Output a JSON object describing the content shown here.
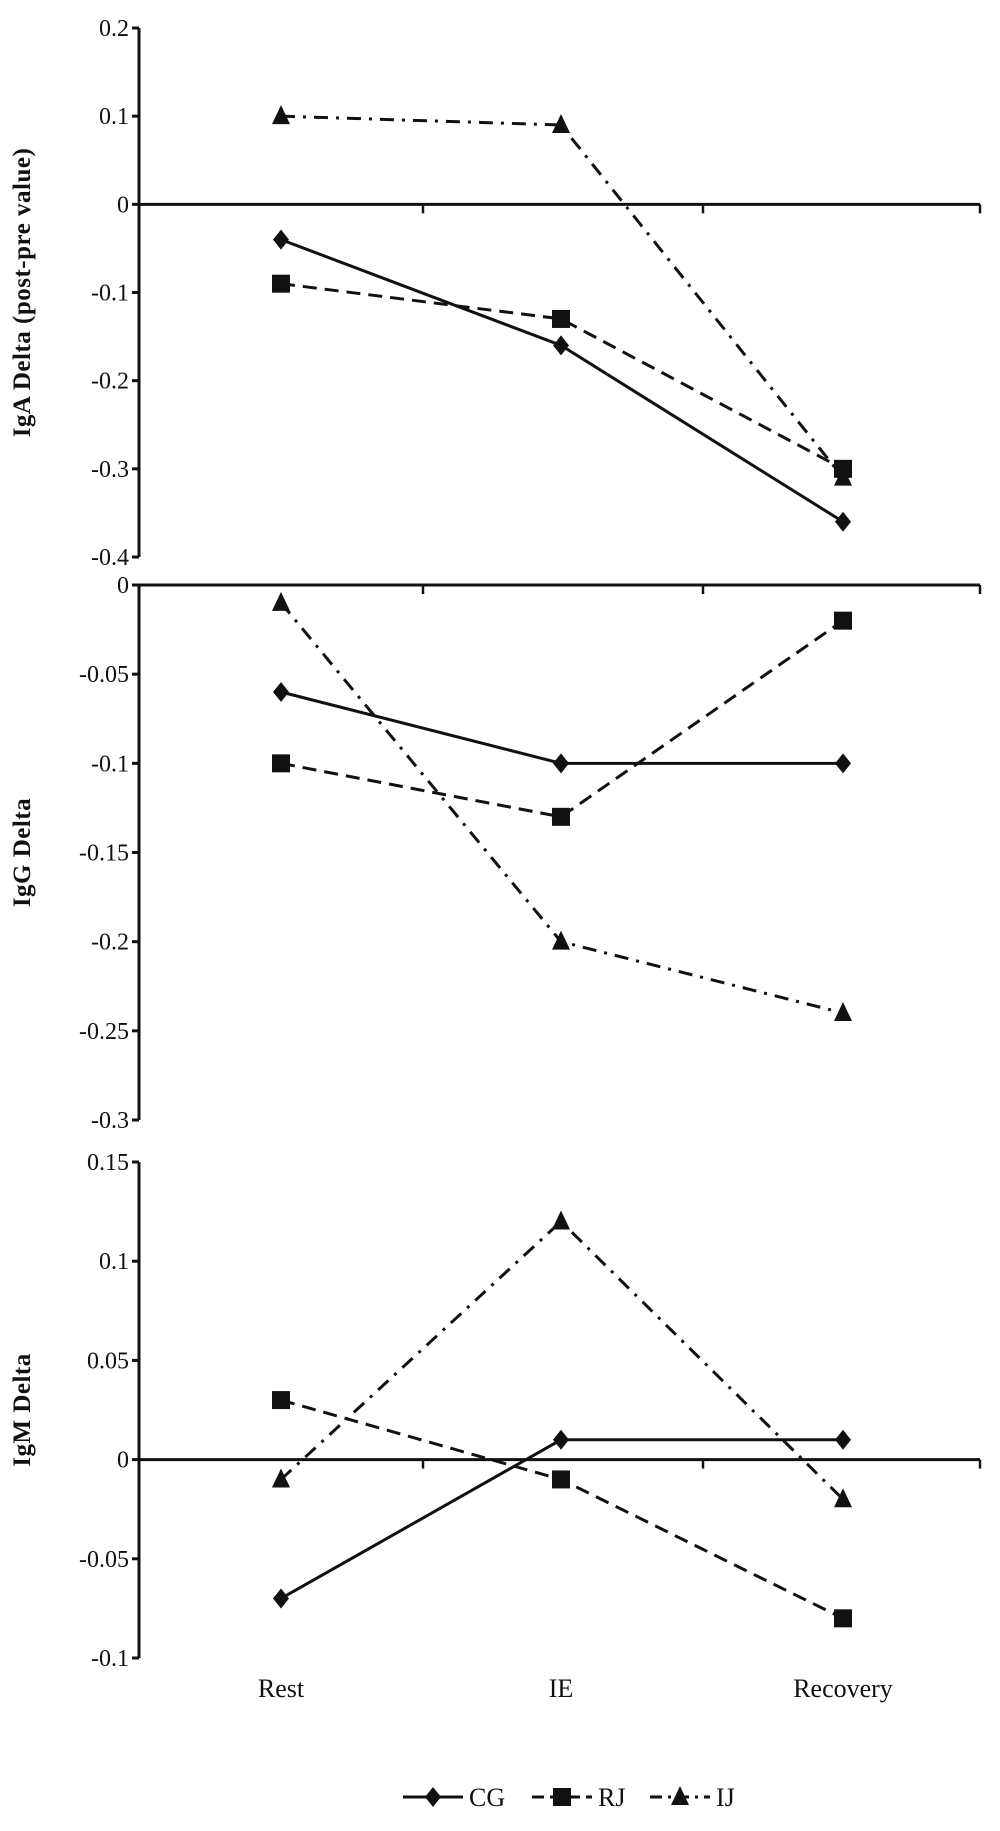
{
  "chart_data": [
    {
      "type": "line",
      "ylabel": "IgA Delta (post-pre value)",
      "categories": [
        "Rest",
        "IE",
        "Recovery"
      ],
      "ylim": [
        -0.4,
        0.2
      ],
      "yticks": [
        0.2,
        0.1,
        0,
        -0.1,
        -0.2,
        -0.3,
        -0.4
      ],
      "ytick_labels": [
        "0.2",
        "0.1",
        "0",
        "-0.1",
        "-0.2",
        "-0.3",
        "-0.4"
      ],
      "series": [
        {
          "name": "CG",
          "values": [
            -0.04,
            -0.16,
            -0.36
          ]
        },
        {
          "name": "RJ",
          "values": [
            -0.09,
            -0.13,
            -0.3
          ]
        },
        {
          "name": "IJ",
          "values": [
            0.1,
            0.09,
            -0.31
          ]
        }
      ]
    },
    {
      "type": "line",
      "ylabel": "IgG Delta",
      "categories": [
        "Rest",
        "IE",
        "Recovery"
      ],
      "ylim": [
        -0.3,
        0
      ],
      "yticks": [
        0,
        -0.05,
        -0.1,
        -0.15,
        -0.2,
        -0.25,
        -0.3
      ],
      "ytick_labels": [
        "0",
        "-0.05",
        "-0.1",
        "-0.15",
        "-0.2",
        "-0.25",
        "-0.3"
      ],
      "series": [
        {
          "name": "CG",
          "values": [
            -0.06,
            -0.1,
            -0.1
          ]
        },
        {
          "name": "RJ",
          "values": [
            -0.1,
            -0.13,
            -0.02
          ]
        },
        {
          "name": "IJ",
          "values": [
            -0.01,
            -0.2,
            -0.24
          ]
        }
      ]
    },
    {
      "type": "line",
      "ylabel": "IgM Delta",
      "categories": [
        "Rest",
        "IE",
        "Recovery"
      ],
      "ylim": [
        -0.1,
        0.15
      ],
      "yticks": [
        0.15,
        0.1,
        0.05,
        0,
        -0.05,
        -0.1
      ],
      "ytick_labels": [
        "0.15",
        "0.1",
        "0.05",
        "0",
        "-0.05",
        "-0.1"
      ],
      "series": [
        {
          "name": "CG",
          "values": [
            -0.07,
            0.01,
            0.01
          ]
        },
        {
          "name": "RJ",
          "values": [
            0.03,
            -0.01,
            -0.08
          ]
        },
        {
          "name": "IJ",
          "values": [
            -0.01,
            0.12,
            -0.02
          ]
        }
      ]
    }
  ],
  "x_categories": [
    "Rest",
    "IE",
    "Recovery"
  ],
  "legend": {
    "position": "bottom",
    "items": [
      {
        "name": "CG",
        "marker": "diamond",
        "dash": "solid"
      },
      {
        "name": "RJ",
        "marker": "square",
        "dash": "dashed"
      },
      {
        "name": "IJ",
        "marker": "triangle",
        "dash": "dash-dot"
      }
    ]
  },
  "colors": {
    "line": "#111111",
    "background": "#ffffff"
  }
}
